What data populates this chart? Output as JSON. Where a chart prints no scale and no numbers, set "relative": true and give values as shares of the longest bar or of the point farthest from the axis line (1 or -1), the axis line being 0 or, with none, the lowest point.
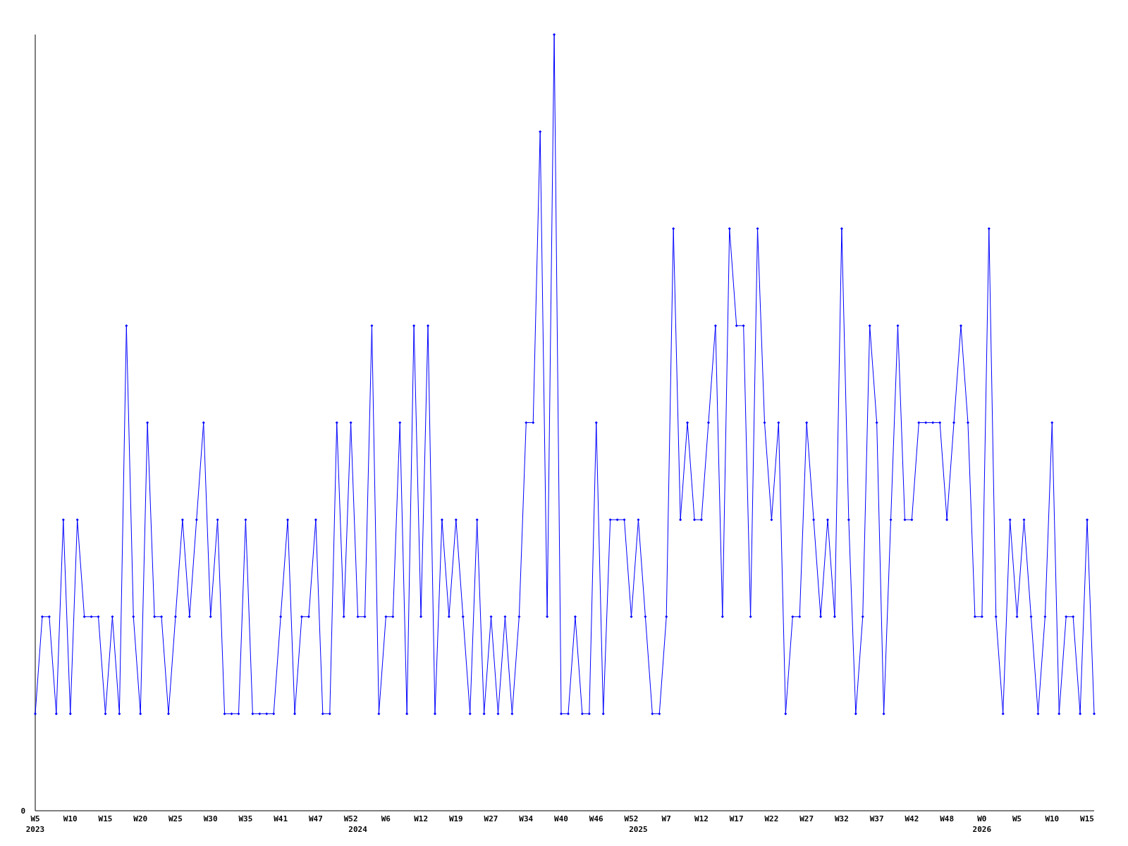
{
  "chart_data": {
    "type": "line",
    "relative": true,
    "marker": "diamond",
    "line_style": "solid",
    "categories": [
      "W5\n2023",
      null,
      null,
      null,
      null,
      "W10",
      null,
      null,
      null,
      null,
      "W15",
      null,
      null,
      null,
      null,
      "W20",
      null,
      null,
      null,
      null,
      "W25",
      null,
      null,
      null,
      null,
      "W30",
      null,
      null,
      null,
      null,
      "W35",
      null,
      null,
      null,
      null,
      "W41",
      null,
      null,
      null,
      null,
      "W47",
      null,
      null,
      null,
      null,
      "W52",
      "\n2024",
      null,
      null,
      null,
      "W6",
      null,
      null,
      null,
      null,
      "W12",
      null,
      null,
      null,
      null,
      "W19",
      null,
      null,
      null,
      null,
      "W27",
      null,
      null,
      null,
      null,
      "W34",
      null,
      null,
      null,
      null,
      "W40",
      null,
      null,
      null,
      null,
      "W46",
      null,
      null,
      null,
      null,
      "W52",
      "\n2025",
      null,
      null,
      null,
      "W7",
      null,
      null,
      null,
      null,
      "W12",
      null,
      null,
      null,
      null,
      "W17",
      null,
      null,
      null,
      null,
      "W22",
      null,
      null,
      null,
      null,
      "W27",
      null,
      null,
      null,
      null,
      "W32",
      null,
      null,
      null,
      null,
      "W37",
      null,
      null,
      null,
      null,
      "W42",
      null,
      null,
      null,
      null,
      "W48",
      null,
      null,
      null,
      null,
      "W0\n2026",
      null,
      null,
      null,
      null,
      "W5",
      null,
      null,
      null,
      null,
      "W10",
      null,
      null,
      null,
      null,
      "W15",
      null
    ],
    "series": [
      {
        "color": "#0000ff",
        "values": [
          0.125,
          0.25,
          0.25,
          0.125,
          0.375,
          0.125,
          0.375,
          0.25,
          0.25,
          0.25,
          0.125,
          0.25,
          0.125,
          0.625,
          0.25,
          0.125,
          0.5,
          0.25,
          0.25,
          0.125,
          0.25,
          0.375,
          0.25,
          0.375,
          0.5,
          0.25,
          0.375,
          0.125,
          0.125,
          0.125,
          0.375,
          0.125,
          0.125,
          0.125,
          0.125,
          0.25,
          0.375,
          0.125,
          0.25,
          0.25,
          0.375,
          0.125,
          0.125,
          0.5,
          0.25,
          0.5,
          0.25,
          0.25,
          0.625,
          0.125,
          0.25,
          0.25,
          0.5,
          0.125,
          0.625,
          0.25,
          0.625,
          0.125,
          0.375,
          0.25,
          0.375,
          0.25,
          0.125,
          0.375,
          0.125,
          0.25,
          0.125,
          0.25,
          0.125,
          0.25,
          0.5,
          0.5,
          0.875,
          0.25,
          1,
          0.125,
          0.125,
          0.25,
          0.125,
          0.125,
          0.5,
          0.125,
          0.375,
          0.375,
          0.375,
          0.25,
          0.375,
          0.25,
          0.125,
          0.125,
          0.25,
          0.75,
          0.375,
          0.5,
          0.375,
          0.375,
          0.5,
          0.625,
          0.25,
          0.75,
          0.625,
          0.625,
          0.25,
          0.75,
          0.5,
          0.375,
          0.5,
          0.125,
          0.25,
          0.25,
          0.5,
          0.375,
          0.25,
          0.375,
          0.25,
          0.75,
          0.375,
          0.125,
          0.25,
          0.625,
          0.5,
          0.125,
          0.375,
          0.625,
          0.375,
          0.375,
          0.5,
          0.5,
          0.5,
          0.5,
          0.375,
          0.5,
          0.625,
          0.5,
          0.25,
          0.25,
          0.75,
          0.25,
          0.125,
          0.375,
          0.25,
          0.375,
          0.25,
          0.125,
          0.25,
          0.5,
          0.125,
          0.25,
          0.25,
          0.125,
          0.375,
          0.125
        ]
      }
    ],
    "annotations": [
      "0"
    ]
  }
}
